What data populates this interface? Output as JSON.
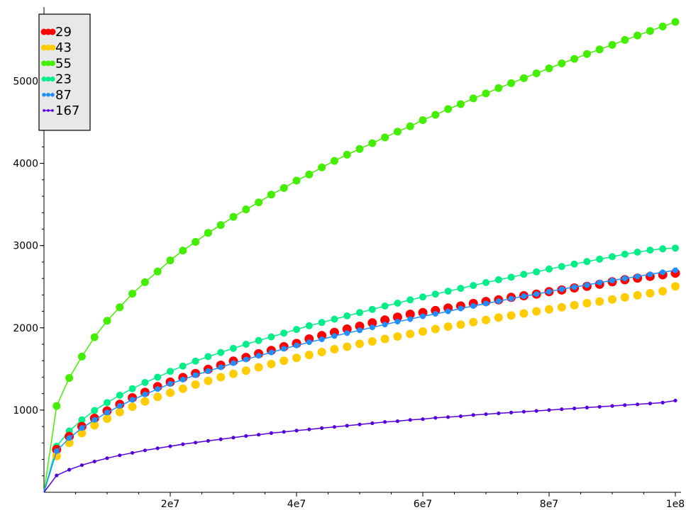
{
  "chart_data": {
    "type": "scatter",
    "title": "",
    "xlabel": "",
    "ylabel": "",
    "xlim": [
      0,
      100000000
    ],
    "ylim": [
      0,
      5900
    ],
    "grid": false,
    "legend_position": "top-left",
    "x_ticks": [
      {
        "value": 20000000,
        "label": "2e7"
      },
      {
        "value": 40000000,
        "label": "4e7"
      },
      {
        "value": 60000000,
        "label": "6e7"
      },
      {
        "value": 80000000,
        "label": "8e7"
      },
      {
        "value": 100000000,
        "label": "1e8"
      }
    ],
    "y_ticks": [
      {
        "value": 1000,
        "label": "1000"
      },
      {
        "value": 2000,
        "label": "2000"
      },
      {
        "value": 3000,
        "label": "3000"
      },
      {
        "value": 4000,
        "label": "4000"
      },
      {
        "value": 5000,
        "label": "5000"
      }
    ],
    "x": [
      2000000,
      4000000,
      6000000,
      8000000,
      10000000,
      12000000,
      14000000,
      16000000,
      18000000,
      20000000,
      22000000,
      24000000,
      26000000,
      28000000,
      30000000,
      32000000,
      34000000,
      36000000,
      38000000,
      40000000,
      42000000,
      44000000,
      46000000,
      48000000,
      50000000,
      52000000,
      54000000,
      56000000,
      58000000,
      60000000,
      62000000,
      64000000,
      66000000,
      68000000,
      70000000,
      72000000,
      74000000,
      76000000,
      78000000,
      80000000,
      82000000,
      84000000,
      86000000,
      88000000,
      90000000,
      92000000,
      94000000,
      96000000,
      98000000,
      100000000
    ],
    "series": [
      {
        "name": "29",
        "color": "#ff0000",
        "marker_size": 6.5,
        "line": false,
        "values": [
          520,
          680,
          800,
          900,
          990,
          1070,
          1150,
          1215,
          1285,
          1340,
          1395,
          1445,
          1495,
          1545,
          1595,
          1640,
          1685,
          1725,
          1770,
          1810,
          1865,
          1905,
          1945,
          1985,
          2020,
          2060,
          2095,
          2130,
          2165,
          2185,
          2210,
          2240,
          2265,
          2295,
          2320,
          2340,
          2370,
          2390,
          2410,
          2440,
          2460,
          2485,
          2505,
          2530,
          2560,
          2585,
          2605,
          2625,
          2645,
          2665
        ]
      },
      {
        "name": "43",
        "color": "#ffcc00",
        "marker_size": 6,
        "line": false,
        "values": [
          440,
          600,
          720,
          815,
          895,
          975,
          1040,
          1105,
          1160,
          1210,
          1260,
          1310,
          1355,
          1400,
          1440,
          1480,
          1520,
          1560,
          1600,
          1635,
          1670,
          1705,
          1740,
          1770,
          1805,
          1835,
          1865,
          1895,
          1925,
          1955,
          1985,
          2015,
          2040,
          2070,
          2095,
          2125,
          2150,
          2175,
          2200,
          2225,
          2250,
          2275,
          2300,
          2320,
          2345,
          2370,
          2395,
          2420,
          2445,
          2505
        ]
      },
      {
        "name": "55",
        "color": "#44ee00",
        "marker_size": 5.5,
        "line": true,
        "values": [
          1050,
          1390,
          1650,
          1885,
          2085,
          2250,
          2415,
          2555,
          2685,
          2820,
          2940,
          3045,
          3155,
          3250,
          3350,
          3440,
          3525,
          3620,
          3700,
          3790,
          3865,
          3950,
          4030,
          4105,
          4175,
          4245,
          4315,
          4385,
          4450,
          4525,
          4590,
          4660,
          4720,
          4790,
          4850,
          4915,
          4975,
          5035,
          5095,
          5155,
          5215,
          5270,
          5330,
          5385,
          5440,
          5500,
          5555,
          5610,
          5665,
          5720
        ]
      },
      {
        "name": "23",
        "color": "#00ee88",
        "marker_size": 5,
        "line": true,
        "values": [
          560,
          745,
          880,
          995,
          1090,
          1180,
          1260,
          1335,
          1400,
          1470,
          1535,
          1595,
          1650,
          1700,
          1750,
          1800,
          1845,
          1890,
          1935,
          1980,
          2025,
          2065,
          2105,
          2145,
          2185,
          2225,
          2265,
          2300,
          2340,
          2375,
          2410,
          2445,
          2480,
          2515,
          2550,
          2585,
          2615,
          2650,
          2680,
          2715,
          2745,
          2775,
          2805,
          2835,
          2865,
          2895,
          2920,
          2945,
          2960,
          2970
        ]
      },
      {
        "name": "87",
        "color": "#1e90ff",
        "marker_size": 4,
        "line": true,
        "values": [
          500,
          660,
          780,
          880,
          970,
          1050,
          1125,
          1190,
          1255,
          1320,
          1370,
          1425,
          1475,
          1520,
          1570,
          1615,
          1660,
          1700,
          1745,
          1785,
          1825,
          1860,
          1900,
          1935,
          1970,
          2005,
          2040,
          2075,
          2105,
          2140,
          2170,
          2200,
          2235,
          2265,
          2295,
          2325,
          2355,
          2385,
          2410,
          2440,
          2470,
          2495,
          2520,
          2550,
          2575,
          2600,
          2625,
          2650,
          2675,
          2700
        ]
      },
      {
        "name": "167",
        "color": "#5500dd",
        "marker_size": 2.6,
        "line": true,
        "values": [
          205,
          275,
          330,
          375,
          415,
          450,
          480,
          510,
          535,
          560,
          585,
          605,
          625,
          645,
          665,
          685,
          700,
          720,
          735,
          750,
          765,
          780,
          795,
          810,
          825,
          840,
          855,
          865,
          880,
          890,
          905,
          915,
          925,
          940,
          950,
          960,
          970,
          980,
          990,
          1000,
          1010,
          1020,
          1030,
          1040,
          1050,
          1060,
          1070,
          1080,
          1090,
          1115
        ]
      }
    ]
  }
}
